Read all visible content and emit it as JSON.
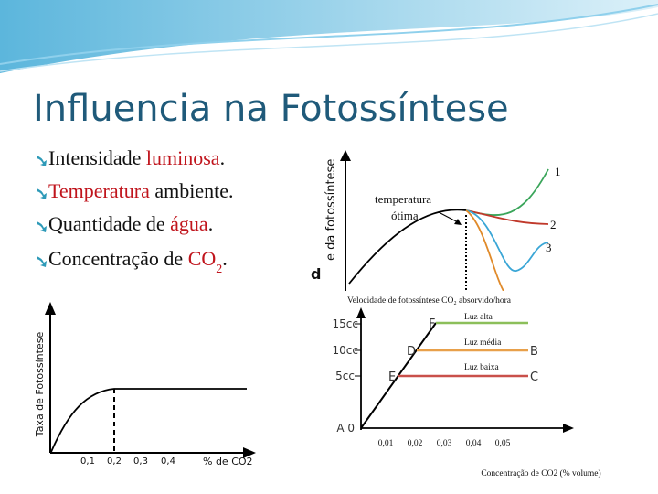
{
  "title": "Influencia na Fotossíntese",
  "bullets": [
    {
      "parts": [
        {
          "text": "Intensidade "
        },
        {
          "text": "luminosa",
          "highlight": true
        },
        {
          "text": "."
        }
      ]
    },
    {
      "parts": [
        {
          "text": "Temperatura",
          "highlight": true
        },
        {
          "text": " ambiente."
        }
      ]
    },
    {
      "parts": [
        {
          "text": "Quantidade de "
        },
        {
          "text": "água",
          "highlight": true
        },
        {
          "text": "."
        }
      ]
    },
    {
      "parts": [
        {
          "text": "Concentração de "
        },
        {
          "text": "CO",
          "highlight": true
        },
        {
          "text": "2",
          "highlight": true,
          "sub": true
        },
        {
          "text": "."
        }
      ]
    }
  ],
  "figure_temperature": {
    "y_label": "e da fotossíntese",
    "clipped_letter": "d",
    "annotation": [
      "temperatura",
      "ótima"
    ],
    "curve_labels": [
      "1",
      "2",
      "3"
    ]
  },
  "figure_co2": {
    "y_label": "Taxa de Fotossíntese",
    "x_label": "% de CO2",
    "x_ticks": [
      "0,1",
      "0,2",
      "0,3",
      "0,4"
    ]
  },
  "figure_light": {
    "title": "Velocidade de fotossíntese CO₂ absorvido/hora",
    "y_labels": [
      "15cc",
      "10cc",
      "5cc",
      "A 0"
    ],
    "points": [
      "F",
      "D",
      "E",
      "B",
      "C"
    ],
    "line_labels": [
      "Luz alta",
      "Luz média",
      "Luz baixa"
    ],
    "x_ticks": [
      "0,01",
      "0,02",
      "0,03",
      "0,04",
      "0,05"
    ],
    "x_label": "Concentração de CO2 (% volume)"
  }
}
